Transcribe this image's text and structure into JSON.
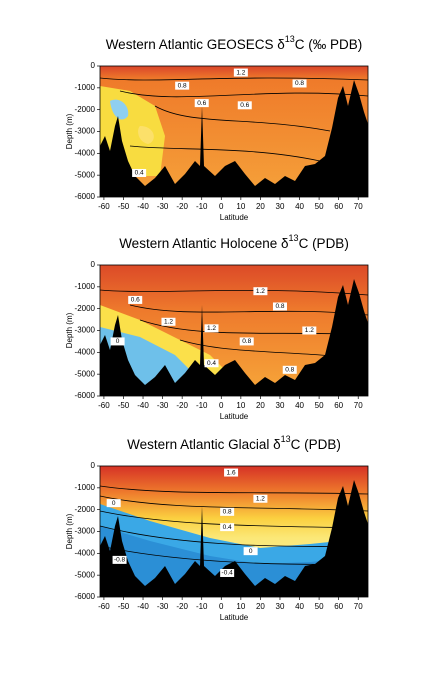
{
  "chart_data": [
    {
      "type": "contour",
      "title": [
        "Western Atlantic GEOSECS δ",
        "13",
        "C (‰ PDB)"
      ],
      "x_label": "Latitude",
      "y_label": "Depth (m)",
      "xlim": [
        -62,
        75
      ],
      "ylim": [
        -6000,
        0
      ],
      "xticks": [
        -60,
        -50,
        -40,
        -30,
        -20,
        -10,
        0,
        10,
        20,
        30,
        40,
        50,
        60,
        70
      ],
      "yticks": [
        0,
        -1000,
        -2000,
        -3000,
        -4000,
        -5000,
        -6000
      ],
      "contour_labels": [
        {
          "value": 1.2,
          "lat": 10,
          "depth": -300
        },
        {
          "value": 0.8,
          "lat": -20,
          "depth": -900
        },
        {
          "value": 0.8,
          "lat": 40,
          "depth": -800
        },
        {
          "value": 0.6,
          "lat": -10,
          "depth": -1700
        },
        {
          "value": 0.6,
          "lat": 12,
          "depth": -1800
        },
        {
          "value": 0.4,
          "lat": -42,
          "depth": -4900
        }
      ]
    },
    {
      "type": "contour",
      "title": [
        "Western Atlantic Holocene δ",
        "13",
        "C (PDB)"
      ],
      "x_label": "Latitude",
      "y_label": "Depth (m)",
      "xlim": [
        -62,
        75
      ],
      "ylim": [
        -6000,
        0
      ],
      "xticks": [
        -60,
        -50,
        -40,
        -30,
        -20,
        -10,
        0,
        10,
        20,
        30,
        40,
        50,
        60,
        70
      ],
      "yticks": [
        0,
        -1000,
        -2000,
        -3000,
        -4000,
        -5000,
        -6000
      ],
      "contour_labels": [
        {
          "value": 1.2,
          "lat": 20,
          "depth": -1200
        },
        {
          "value": 0.6,
          "lat": -44,
          "depth": -1600
        },
        {
          "value": 1.2,
          "lat": -27,
          "depth": -2600
        },
        {
          "value": 0.8,
          "lat": 30,
          "depth": -1900
        },
        {
          "value": 1.2,
          "lat": -5,
          "depth": -2900
        },
        {
          "value": 0.8,
          "lat": 13,
          "depth": -3500
        },
        {
          "value": 1.2,
          "lat": 45,
          "depth": -3000
        },
        {
          "value": 0,
          "lat": -53,
          "depth": -3500
        },
        {
          "value": 0.4,
          "lat": -5,
          "depth": -4500
        },
        {
          "value": 0.8,
          "lat": 35,
          "depth": -4800
        }
      ]
    },
    {
      "type": "contour",
      "title": [
        "Western Atlantic Glacial δ",
        "13",
        "C (PDB)"
      ],
      "x_label": "Latitude",
      "y_label": "Depth (m)",
      "xlim": [
        -62,
        75
      ],
      "ylim": [
        -6000,
        0
      ],
      "xticks": [
        -60,
        -50,
        -40,
        -30,
        -20,
        -10,
        0,
        10,
        20,
        30,
        40,
        50,
        60,
        70
      ],
      "yticks": [
        0,
        -1000,
        -2000,
        -3000,
        -4000,
        -5000,
        -6000
      ],
      "contour_labels": [
        {
          "value": 1.6,
          "lat": 5,
          "depth": -300
        },
        {
          "value": 1.2,
          "lat": 20,
          "depth": -1500
        },
        {
          "value": 0,
          "lat": -55,
          "depth": -1700
        },
        {
          "value": 0.8,
          "lat": 3,
          "depth": -2100
        },
        {
          "value": 0.4,
          "lat": 3,
          "depth": -2800
        },
        {
          "value": -0.8,
          "lat": -52,
          "depth": -4300
        },
        {
          "value": 0,
          "lat": 15,
          "depth": -3900
        },
        {
          "value": -0.4,
          "lat": 3,
          "depth": -4900
        }
      ]
    }
  ]
}
